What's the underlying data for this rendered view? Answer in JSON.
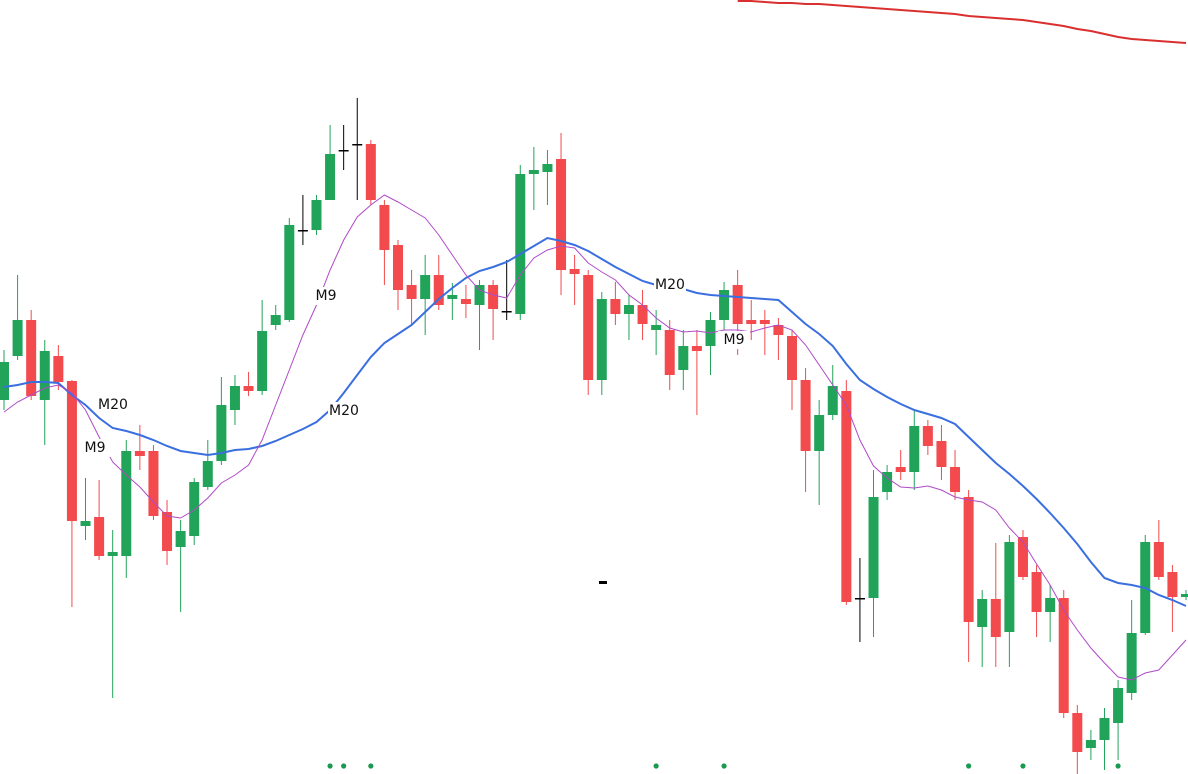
{
  "chart_data": {
    "type": "candlestick",
    "up_color": "#22a35a",
    "down_color": "#f24a4d",
    "flat_color": "#000000",
    "ylim": [
      0,
      774
    ],
    "open": [
      374,
      418,
      454,
      374,
      418,
      393,
      248,
      257,
      218,
      218,
      323,
      323,
      262,
      227,
      238,
      287,
      313,
      364,
      388,
      383,
      449,
      454,
      544,
      544,
      574,
      624,
      630,
      630,
      569,
      529,
      489,
      475,
      499,
      475,
      475,
      469,
      489,
      463,
      460,
      600,
      602,
      615,
      505,
      499,
      394,
      475,
      460,
      469,
      444,
      444,
      404,
      428,
      428,
      454,
      489,
      454,
      454,
      449,
      438,
      394,
      323,
      359,
      383,
      176,
      176,
      282,
      307,
      302,
      348,
      333,
      307,
      277,
      147,
      175,
      142,
      237,
      202,
      162,
      176,
      61,
      26,
      34,
      51,
      81,
      141,
      232,
      202,
      177
    ],
    "high": [
      424,
      499,
      464,
      434,
      429,
      394,
      296,
      294,
      244,
      334,
      349,
      329,
      274,
      254,
      296,
      334,
      397,
      399,
      402,
      474,
      469,
      556,
      579,
      579,
      649,
      649,
      676,
      634,
      574,
      534,
      504,
      519,
      519,
      491,
      489,
      494,
      494,
      514,
      609,
      627,
      624,
      641,
      519,
      504,
      482,
      492,
      479,
      484,
      464,
      454,
      444,
      444,
      462,
      492,
      504,
      474,
      464,
      456,
      444,
      406,
      374,
      409,
      394,
      216,
      304,
      309,
      324,
      364,
      354,
      349,
      324,
      284,
      184,
      231,
      239,
      244,
      209,
      189,
      184,
      69,
      44,
      66,
      94,
      174,
      239,
      254,
      209,
      184
    ],
    "low": [
      364,
      414,
      374,
      329,
      384,
      167,
      234,
      214,
      76,
      196,
      304,
      254,
      209,
      162,
      229,
      284,
      309,
      349,
      378,
      379,
      444,
      452,
      529,
      539,
      574,
      604,
      574,
      569,
      489,
      464,
      449,
      439,
      464,
      454,
      456,
      424,
      434,
      454,
      454,
      564,
      569,
      479,
      469,
      379,
      379,
      449,
      434,
      434,
      419,
      384,
      384,
      359,
      399,
      444,
      419,
      434,
      419,
      414,
      364,
      282,
      269,
      354,
      169,
      132,
      137,
      274,
      294,
      284,
      319,
      294,
      274,
      112,
      107,
      107,
      107,
      194,
      137,
      132,
      56,
      0,
      14,
      4,
      14,
      74,
      139,
      194,
      142,
      174
    ],
    "close": [
      412,
      454,
      378,
      423,
      392,
      253,
      253,
      218,
      222,
      323,
      318,
      258,
      223,
      243,
      292,
      313,
      369,
      388,
      383,
      443,
      459,
      549,
      544,
      574,
      620,
      624,
      630,
      574,
      524,
      484,
      475,
      499,
      469,
      479,
      470,
      489,
      465,
      463,
      600,
      604,
      610,
      504,
      500,
      394,
      475,
      460,
      469,
      450,
      449,
      399,
      428,
      423,
      454,
      484,
      450,
      450,
      450,
      439,
      394,
      323,
      359,
      388,
      172,
      176,
      277,
      302,
      302,
      348,
      328,
      307,
      282,
      152,
      175,
      137,
      232,
      197,
      162,
      176,
      61,
      22,
      34,
      56,
      86,
      141,
      232,
      197,
      177,
      180
    ],
    "lines": [
      {
        "color": "#d9302f",
        "values": [
          null,
          null,
          null,
          null,
          null,
          null,
          null,
          null,
          null,
          null,
          null,
          null,
          null,
          null,
          null,
          null,
          null,
          null,
          null,
          null,
          null,
          null,
          null,
          null,
          null,
          null,
          null,
          null,
          null,
          null,
          null,
          null,
          null,
          null,
          null,
          null,
          null,
          null,
          null,
          null,
          null,
          null,
          null,
          null,
          null,
          null,
          null,
          null,
          null,
          null,
          null,
          null,
          null,
          null,
          773,
          773,
          772,
          771,
          771,
          770,
          770,
          769,
          768,
          767,
          766,
          765,
          764,
          763,
          762,
          761,
          760,
          758,
          757,
          756,
          755,
          754,
          752,
          750,
          748,
          745,
          743,
          740,
          737,
          735,
          734,
          733,
          732,
          731
        ]
      },
      {
        "color": "#3a6fe0",
        "values": [
          387,
          389,
          392,
          392,
          391,
          379,
          369,
          356,
          346,
          343,
          339,
          334,
          328,
          323,
          321,
          319,
          321,
          324,
          325,
          328,
          333,
          339,
          345,
          352,
          364,
          381,
          399,
          417,
          431,
          440,
          449,
          462,
          475,
          486,
          496,
          503,
          507,
          512,
          520,
          528,
          536,
          533,
          529,
          523,
          515,
          507,
          500,
          493,
          489,
          487,
          485,
          481,
          479,
          478,
          477,
          476,
          475,
          474,
          462,
          450,
          440,
          428,
          410,
          394,
          385,
          377,
          370,
          364,
          360,
          356,
          350,
          337,
          324,
          311,
          300,
          288,
          275,
          261,
          246,
          230,
          212,
          196,
          191,
          189,
          186,
          179,
          174,
          168
        ]
      },
      {
        "color": "#b04ac8",
        "values": [
          362,
          372,
          379,
          386,
          389,
          381,
          364,
          337,
          312,
          299,
          287,
          272,
          258,
          256,
          264,
          276,
          291,
          299,
          309,
          334,
          369,
          404,
          439,
          469,
          504,
          534,
          557,
          569,
          579,
          572,
          564,
          556,
          539,
          519,
          499,
          484,
          479,
          476,
          499,
          516,
          524,
          528,
          526,
          511,
          502,
          494,
          479,
          469,
          456,
          446,
          442,
          443,
          441,
          444,
          444,
          442,
          446,
          449,
          444,
          429,
          409,
          389,
          369,
          334,
          308,
          296,
          287,
          286,
          288,
          284,
          277,
          274,
          272,
          264,
          246,
          232,
          210,
          189,
          164,
          144,
          126,
          111,
          97,
          94,
          101,
          104,
          119,
          134
        ]
      }
    ],
    "signals": {
      "color": "#1a9a50",
      "x": [
        24,
        25,
        27,
        48,
        53,
        71,
        75,
        82
      ]
    },
    "annotations": [
      "M20",
      "M9",
      "M9",
      "M20",
      "M20",
      "M9"
    ]
  }
}
